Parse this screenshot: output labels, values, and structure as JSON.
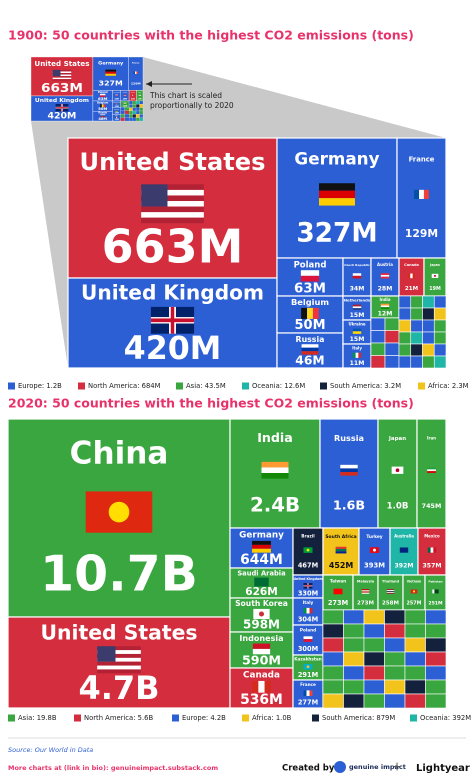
{
  "chart_data": [
    {
      "type": "treemap",
      "title": "1900: 50 countries with the highest CO2 emissions (tons)",
      "annotation": [
        "This chart is scaled",
        "proportionally to 2020"
      ],
      "items": [
        {
          "name": "United States",
          "value": 663000000,
          "value_label": "663M",
          "color": "#d42e3e"
        },
        {
          "name": "United Kingdom",
          "value": 420000000,
          "value_label": "420M",
          "color": "#2d5fd4"
        },
        {
          "name": "Germany",
          "value": 327000000,
          "value_label": "327M",
          "color": "#2d5fd4"
        },
        {
          "name": "France",
          "value": 129000000,
          "value_label": "129M",
          "color": "#2d5fd4"
        },
        {
          "name": "Poland",
          "value": 63000000,
          "value_label": "63M",
          "color": "#2d5fd4"
        },
        {
          "name": "Belgium",
          "value": 50000000,
          "value_label": "50M",
          "color": "#2d5fd4"
        },
        {
          "name": "Russia",
          "value": 46000000,
          "value_label": "46M",
          "color": "#2d5fd4"
        },
        {
          "name": "Czech Republic",
          "value": 34000000,
          "value_label": "34M",
          "color": "#2d5fd4"
        },
        {
          "name": "Austria",
          "value": 28000000,
          "value_label": "28M",
          "color": "#2d5fd4"
        },
        {
          "name": "Canada",
          "value": 21000000,
          "value_label": "21M",
          "color": "#d42e3e"
        },
        {
          "name": "Japan",
          "value": 19000000,
          "value_label": "19M",
          "color": "#3aa63f"
        },
        {
          "name": "Netherlands",
          "value": 15000000,
          "value_label": "15M",
          "color": "#2d5fd4"
        },
        {
          "name": "India",
          "value": 12000000,
          "value_label": "12M",
          "color": "#3aa63f"
        },
        {
          "name": "Ukraine",
          "value": 15000000,
          "value_label": "15M",
          "color": "#2d5fd4"
        },
        {
          "name": "Italy",
          "value": 11000000,
          "value_label": "11M",
          "color": "#2d5fd4"
        }
      ],
      "legend": [
        {
          "label": "Europe: 1.2B",
          "color": "#2d5fd4"
        },
        {
          "label": "North America: 684M",
          "color": "#d42e3e"
        },
        {
          "label": "Asia: 43.5M",
          "color": "#3aa63f"
        },
        {
          "label": "Oceania: 12.6M",
          "color": "#1fb5a7"
        },
        {
          "label": "South America: 3.2M",
          "color": "#14213d"
        },
        {
          "label": "Africa: 2.3M",
          "color": "#f2c31b"
        }
      ]
    },
    {
      "type": "treemap",
      "title": "2020: 50 countries with the highest CO2 emissions (tons)",
      "items": [
        {
          "name": "China",
          "value": 10700000000,
          "value_label": "10.7B",
          "color": "#3aa63f"
        },
        {
          "name": "United States",
          "value": 4700000000,
          "value_label": "4.7B",
          "color": "#d42e3e"
        },
        {
          "name": "India",
          "value": 2400000000,
          "value_label": "2.4B",
          "color": "#3aa63f"
        },
        {
          "name": "Russia",
          "value": 1600000000,
          "value_label": "1.6B",
          "color": "#2d5fd4"
        },
        {
          "name": "Japan",
          "value": 1000000000,
          "value_label": "1.0B",
          "color": "#3aa63f"
        },
        {
          "name": "Iran",
          "value": 745000000,
          "value_label": "745M",
          "color": "#3aa63f"
        },
        {
          "name": "Germany",
          "value": 644000000,
          "value_label": "644M",
          "color": "#2d5fd4"
        },
        {
          "name": "Saudi Arabia",
          "value": 626000000,
          "value_label": "626M",
          "color": "#3aa63f"
        },
        {
          "name": "South Korea",
          "value": 598000000,
          "value_label": "598M",
          "color": "#3aa63f"
        },
        {
          "name": "Indonesia",
          "value": 590000000,
          "value_label": "590M",
          "color": "#3aa63f"
        },
        {
          "name": "Canada",
          "value": 536000000,
          "value_label": "536M",
          "color": "#d42e3e"
        },
        {
          "name": "Brazil",
          "value": 467000000,
          "value_label": "467M",
          "color": "#14213d"
        },
        {
          "name": "South Africa",
          "value": 452000000,
          "value_label": "452M",
          "color": "#f2c31b"
        },
        {
          "name": "Turkey",
          "value": 393000000,
          "value_label": "393M",
          "color": "#2d5fd4"
        },
        {
          "name": "Australia",
          "value": 392000000,
          "value_label": "392M",
          "color": "#1fb5a7"
        },
        {
          "name": "Mexico",
          "value": 357000000,
          "value_label": "357M",
          "color": "#d42e3e"
        },
        {
          "name": "United Kingdom",
          "value": 330000000,
          "value_label": "330M",
          "color": "#2d5fd4"
        },
        {
          "name": "Italy",
          "value": 304000000,
          "value_label": "304M",
          "color": "#2d5fd4"
        },
        {
          "name": "Poland",
          "value": 300000000,
          "value_label": "300M",
          "color": "#2d5fd4"
        },
        {
          "name": "Kazakhstan",
          "value": 291000000,
          "value_label": "291M",
          "color": "#3aa63f"
        },
        {
          "name": "France",
          "value": 277000000,
          "value_label": "277M",
          "color": "#2d5fd4"
        },
        {
          "name": "Taiwan",
          "value": 273000000,
          "value_label": "273M",
          "color": "#3aa63f"
        },
        {
          "name": "Malaysia",
          "value": 273000000,
          "value_label": "273M",
          "color": "#3aa63f"
        },
        {
          "name": "Thailand",
          "value": 258000000,
          "value_label": "258M",
          "color": "#3aa63f"
        },
        {
          "name": "Vietnam",
          "value": 257000000,
          "value_label": "257M",
          "color": "#3aa63f"
        },
        {
          "name": "Pakistan",
          "value": 251000000,
          "value_label": "251M",
          "color": "#3aa63f"
        }
      ],
      "legend": [
        {
          "label": "Asia: 19.8B",
          "color": "#3aa63f"
        },
        {
          "label": "North America: 5.6B",
          "color": "#d42e3e"
        },
        {
          "label": "Europe: 4.2B",
          "color": "#2d5fd4"
        },
        {
          "label": "Africa: 1.0B",
          "color": "#f2c31b"
        },
        {
          "label": "South America: 879M",
          "color": "#14213d"
        },
        {
          "label": "Oceania: 392M",
          "color": "#1fb5a7"
        }
      ]
    }
  ],
  "source": "Source: Our World in Data",
  "footer_link": "More charts at (link in bio): genuineimpact.substack.com",
  "credits": [
    "Created by",
    "genuine impact",
    "Lightyear"
  ]
}
